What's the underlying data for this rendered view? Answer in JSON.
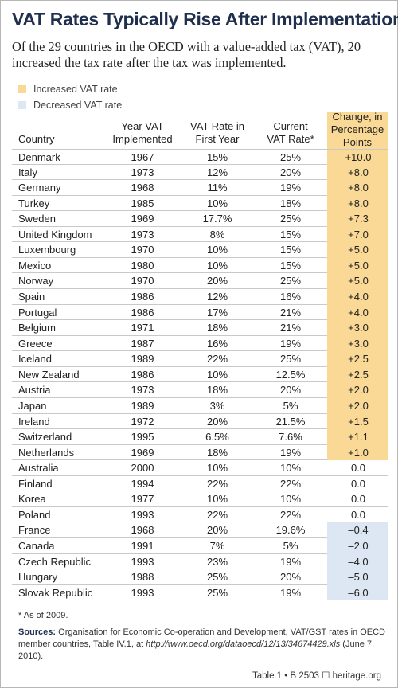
{
  "title": "VAT Rates Typically Rise After Implementation",
  "subtitle": "Of the 29 countries in the OECD with a value-added tax (VAT), 20 increased the tax rate after the tax was implemented.",
  "legend": {
    "increased": "Increased VAT rate",
    "decreased": "Decreased VAT rate"
  },
  "colors": {
    "increased": "#f9d995",
    "decreased": "#dce7f3",
    "title": "#1f2f4d"
  },
  "headers": {
    "country": "Country",
    "year_line1": "Year VAT",
    "year_line2": "Implemented",
    "first_line1": "VAT Rate in",
    "first_line2": "First Year",
    "current_line1": "Current",
    "current_line2": "VAT Rate*",
    "change_line1": "Change, in",
    "change_line2": "Percentage",
    "change_line3": "Points"
  },
  "chart_data": {
    "type": "table",
    "columns": [
      "Country",
      "Year VAT Implemented",
      "VAT Rate in First Year",
      "Current VAT Rate*",
      "Change, in Percentage Points"
    ],
    "rows": [
      {
        "country": "Denmark",
        "year": "1967",
        "first": "15%",
        "current": "25%",
        "change": "+10.0",
        "status": "increased"
      },
      {
        "country": "Italy",
        "year": "1973",
        "first": "12%",
        "current": "20%",
        "change": "+8.0",
        "status": "increased"
      },
      {
        "country": "Germany",
        "year": "1968",
        "first": "11%",
        "current": "19%",
        "change": "+8.0",
        "status": "increased"
      },
      {
        "country": "Turkey",
        "year": "1985",
        "first": "10%",
        "current": "18%",
        "change": "+8.0",
        "status": "increased"
      },
      {
        "country": "Sweden",
        "year": "1969",
        "first": "17.7%",
        "current": "25%",
        "change": "+7.3",
        "status": "increased"
      },
      {
        "country": "United Kingdom",
        "year": "1973",
        "first": "8%",
        "current": "15%",
        "change": "+7.0",
        "status": "increased"
      },
      {
        "country": "Luxembourg",
        "year": "1970",
        "first": "10%",
        "current": "15%",
        "change": "+5.0",
        "status": "increased"
      },
      {
        "country": "Mexico",
        "year": "1980",
        "first": "10%",
        "current": "15%",
        "change": "+5.0",
        "status": "increased"
      },
      {
        "country": "Norway",
        "year": "1970",
        "first": "20%",
        "current": "25%",
        "change": "+5.0",
        "status": "increased"
      },
      {
        "country": "Spain",
        "year": "1986",
        "first": "12%",
        "current": "16%",
        "change": "+4.0",
        "status": "increased"
      },
      {
        "country": "Portugal",
        "year": "1986",
        "first": "17%",
        "current": "21%",
        "change": "+4.0",
        "status": "increased"
      },
      {
        "country": "Belgium",
        "year": "1971",
        "first": "18%",
        "current": "21%",
        "change": "+3.0",
        "status": "increased"
      },
      {
        "country": "Greece",
        "year": "1987",
        "first": "16%",
        "current": "19%",
        "change": "+3.0",
        "status": "increased"
      },
      {
        "country": "Iceland",
        "year": "1989",
        "first": "22%",
        "current": "25%",
        "change": "+2.5",
        "status": "increased"
      },
      {
        "country": "New Zealand",
        "year": "1986",
        "first": "10%",
        "current": "12.5%",
        "change": "+2.5",
        "status": "increased"
      },
      {
        "country": "Austria",
        "year": "1973",
        "first": "18%",
        "current": "20%",
        "change": "+2.0",
        "status": "increased"
      },
      {
        "country": "Japan",
        "year": "1989",
        "first": "3%",
        "current": "5%",
        "change": "+2.0",
        "status": "increased"
      },
      {
        "country": "Ireland",
        "year": "1972",
        "first": "20%",
        "current": "21.5%",
        "change": "+1.5",
        "status": "increased"
      },
      {
        "country": "Switzerland",
        "year": "1995",
        "first": "6.5%",
        "current": "7.6%",
        "change": "+1.1",
        "status": "increased"
      },
      {
        "country": "Netherlands",
        "year": "1969",
        "first": "18%",
        "current": "19%",
        "change": "+1.0",
        "status": "increased"
      },
      {
        "country": "Australia",
        "year": "2000",
        "first": "10%",
        "current": "10%",
        "change": "0.0",
        "status": "unchanged"
      },
      {
        "country": "Finland",
        "year": "1994",
        "first": "22%",
        "current": "22%",
        "change": "0.0",
        "status": "unchanged"
      },
      {
        "country": "Korea",
        "year": "1977",
        "first": "10%",
        "current": "10%",
        "change": "0.0",
        "status": "unchanged"
      },
      {
        "country": "Poland",
        "year": "1993",
        "first": "22%",
        "current": "22%",
        "change": "0.0",
        "status": "unchanged"
      },
      {
        "country": "France",
        "year": "1968",
        "first": "20%",
        "current": "19.6%",
        "change": "–0.4",
        "status": "decreased"
      },
      {
        "country": "Canada",
        "year": "1991",
        "first": "7%",
        "current": "5%",
        "change": "–2.0",
        "status": "decreased"
      },
      {
        "country": "Czech Republic",
        "year": "1993",
        "first": "23%",
        "current": "19%",
        "change": "–4.0",
        "status": "decreased"
      },
      {
        "country": "Hungary",
        "year": "1988",
        "first": "25%",
        "current": "20%",
        "change": "–5.0",
        "status": "decreased"
      },
      {
        "country": "Slovak Republic",
        "year": "1993",
        "first": "25%",
        "current": "19%",
        "change": "–6.0",
        "status": "decreased"
      }
    ]
  },
  "footnote": "* As of 2009.",
  "sources": {
    "label": "Sources:",
    "text": "Organisation for Economic Co-operation and Development, VAT/GST rates in OECD member countries, Table IV.1, at",
    "url": "http://www.oecd.org/dataoecd/12/13/34674429.xls",
    "date": "(June 7, 2010)."
  },
  "credit": "Table 1 • B 2503 ☐ heritage.org"
}
